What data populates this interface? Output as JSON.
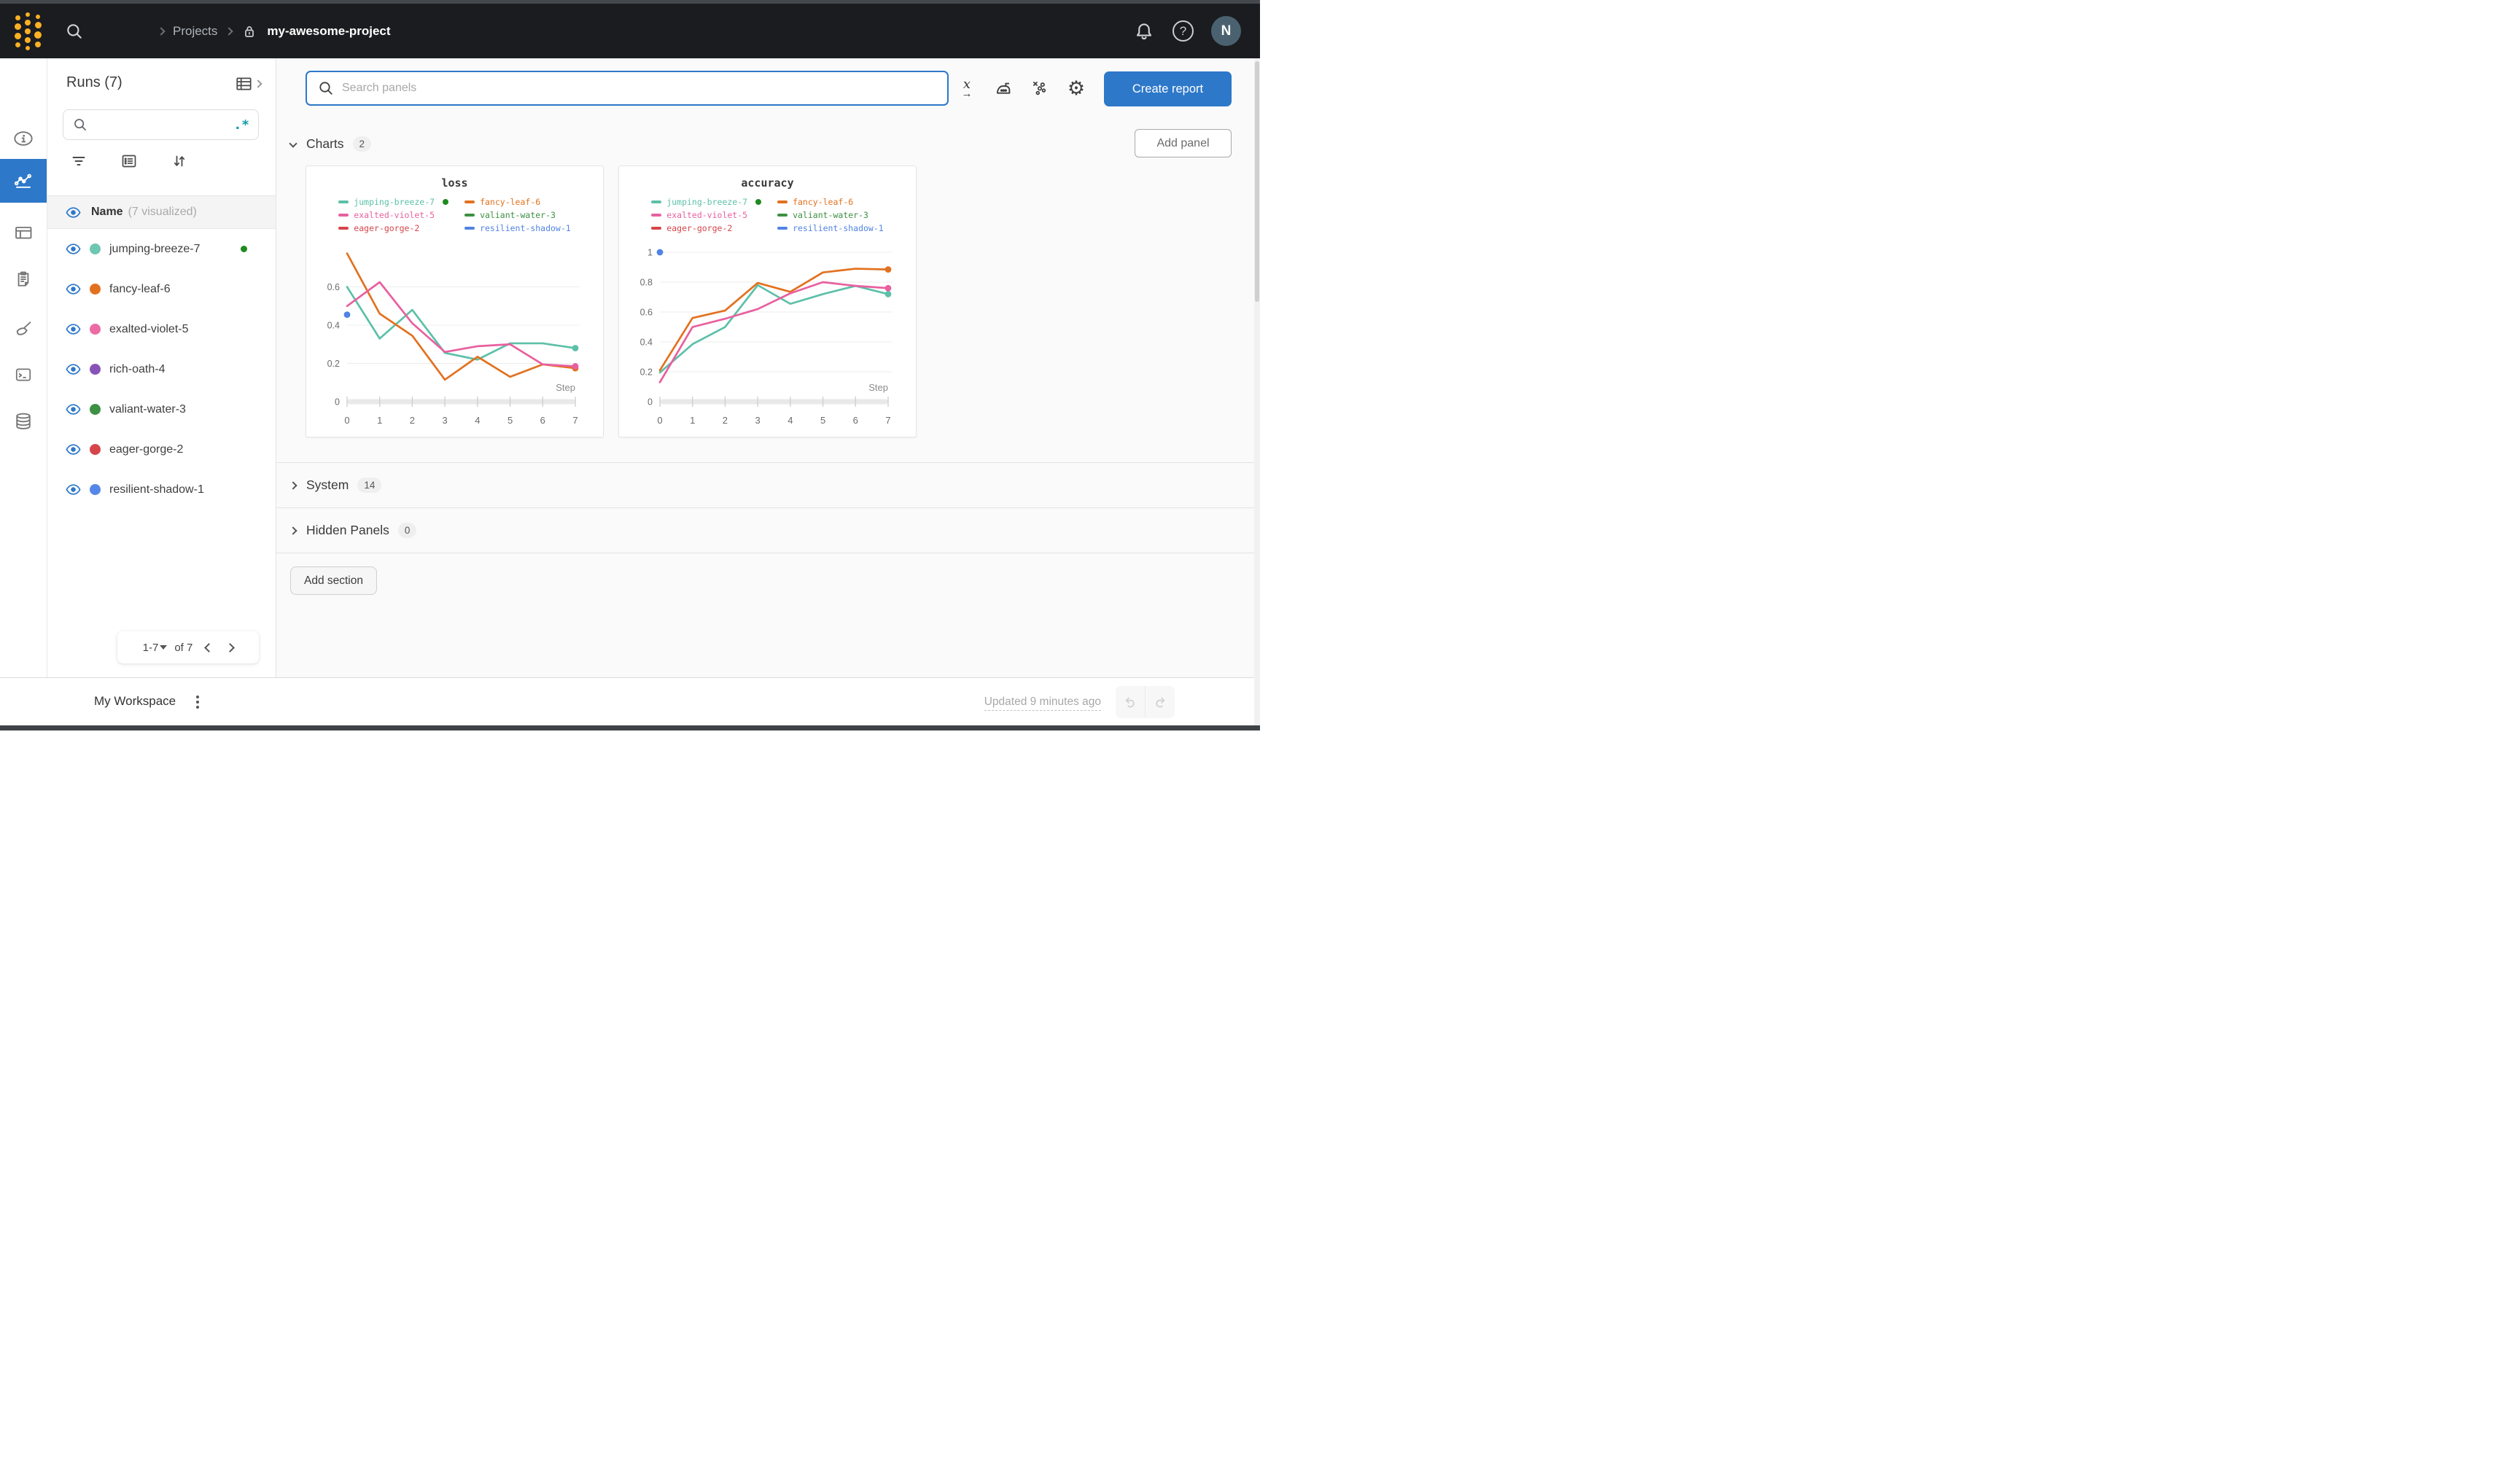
{
  "theme": {
    "accent_blue": "#2d78c9",
    "header_bg": "#1a1c20",
    "logo_yellow": "#fcb024",
    "status_green": "#1f8a1f",
    "avatar_bg": "#4a6270",
    "main_bg": "#fafafa"
  },
  "header": {
    "breadcrumb": {
      "projects": "Projects",
      "project": "my-awesome-project"
    },
    "help_glyph": "?",
    "avatar_initial": "N"
  },
  "sidebar": {
    "title": "Runs (7)",
    "search_value": "",
    "regex_glyph": ".*",
    "name_header": {
      "label": "Name",
      "sub": "(7 visualized)"
    },
    "runs": [
      {
        "name": "jumping-breeze-7",
        "color": "#6ec7b1",
        "status": "running"
      },
      {
        "name": "fancy-leaf-6",
        "color": "#e2711f",
        "status": null
      },
      {
        "name": "exalted-violet-5",
        "color": "#ec6ba5",
        "status": null
      },
      {
        "name": "rich-oath-4",
        "color": "#8853b8",
        "status": null
      },
      {
        "name": "valiant-water-3",
        "color": "#3d9144",
        "status": null
      },
      {
        "name": "eager-gorge-2",
        "color": "#d6454b",
        "status": null
      },
      {
        "name": "resilient-shadow-1",
        "color": "#5487e8",
        "status": null
      }
    ],
    "pagination": {
      "range": "1-7",
      "of": "of 7"
    }
  },
  "main": {
    "search": {
      "placeholder": "Search panels"
    },
    "gear_glyph": "⚙",
    "xaxis_glyph_x": "x",
    "xaxis_glyph_arrow": "→",
    "create_report_label": "Create report",
    "add_panel_label": "Add panel",
    "sections": {
      "charts": {
        "label": "Charts",
        "count": "2"
      },
      "system": {
        "label": "System",
        "count": "14"
      },
      "hidden": {
        "label": "Hidden Panels",
        "count": "0"
      }
    },
    "add_section_label": "Add section"
  },
  "footer": {
    "workspace_label": "My Workspace",
    "updated_text": "Updated 9 minutes ago"
  },
  "chart_data": [
    {
      "type": "line",
      "title": "loss",
      "xlabel": "Step",
      "xlim": [
        0,
        7
      ],
      "ylim": [
        0,
        0.785
      ],
      "xticks": [
        0,
        1,
        2,
        3,
        4,
        5,
        6,
        7
      ],
      "yticks": [
        0.2,
        0.4,
        0.6
      ],
      "grid": "horizontal",
      "legend_position": "top",
      "series": [
        {
          "name": "jumping-breeze-7",
          "color": "#5cc0a8",
          "status_dot": true,
          "points": [
            [
              0,
              0.6
            ],
            [
              1,
              0.33
            ],
            [
              2,
              0.48
            ],
            [
              3,
              0.255
            ],
            [
              4,
              0.22
            ],
            [
              5,
              0.305
            ],
            [
              6,
              0.305
            ],
            [
              7,
              0.28
            ]
          ]
        },
        {
          "name": "fancy-leaf-6",
          "color": "#e2711f",
          "points": [
            [
              0,
              0.775
            ],
            [
              1,
              0.46
            ],
            [
              2,
              0.345
            ],
            [
              3,
              0.115
            ],
            [
              4,
              0.235
            ],
            [
              5,
              0.13
            ],
            [
              6,
              0.195
            ],
            [
              7,
              0.175
            ]
          ]
        },
        {
          "name": "exalted-violet-5",
          "color": "#e8609f",
          "points": [
            [
              0,
              0.5
            ],
            [
              1,
              0.625
            ],
            [
              2,
              0.41
            ],
            [
              3,
              0.26
            ],
            [
              4,
              0.29
            ],
            [
              5,
              0.3
            ],
            [
              6,
              0.195
            ],
            [
              7,
              0.185
            ]
          ]
        },
        {
          "name": "valiant-water-3",
          "color": "#3d9144",
          "points": []
        },
        {
          "name": "eager-gorge-2",
          "color": "#d6454b",
          "points": []
        },
        {
          "name": "resilient-shadow-1",
          "color": "#5183e4",
          "points": [
            [
              0,
              0.455
            ]
          ]
        }
      ]
    },
    {
      "type": "line",
      "title": "accuracy",
      "xlabel": "Step",
      "xlim": [
        0,
        7
      ],
      "ylim": [
        0,
        1.005
      ],
      "xticks": [
        0,
        1,
        2,
        3,
        4,
        5,
        6,
        7
      ],
      "yticks": [
        0.2,
        0.4,
        0.6,
        0.8,
        1
      ],
      "grid": "horizontal",
      "legend_position": "top",
      "series": [
        {
          "name": "jumping-breeze-7",
          "color": "#5cc0a8",
          "status_dot": true,
          "points": [
            [
              0,
              0.195
            ],
            [
              1,
              0.385
            ],
            [
              2,
              0.5
            ],
            [
              3,
              0.78
            ],
            [
              4,
              0.655
            ],
            [
              5,
              0.72
            ],
            [
              6,
              0.775
            ],
            [
              7,
              0.72
            ]
          ]
        },
        {
          "name": "fancy-leaf-6",
          "color": "#e2711f",
          "points": [
            [
              0,
              0.21
            ],
            [
              1,
              0.56
            ],
            [
              2,
              0.61
            ],
            [
              3,
              0.795
            ],
            [
              4,
              0.735
            ],
            [
              5,
              0.865
            ],
            [
              6,
              0.89
            ],
            [
              7,
              0.885
            ]
          ]
        },
        {
          "name": "exalted-violet-5",
          "color": "#e8609f",
          "points": [
            [
              0,
              0.13
            ],
            [
              1,
              0.5
            ],
            [
              2,
              0.555
            ],
            [
              3,
              0.62
            ],
            [
              4,
              0.725
            ],
            [
              5,
              0.8
            ],
            [
              6,
              0.775
            ],
            [
              7,
              0.76
            ]
          ]
        },
        {
          "name": "valiant-water-3",
          "color": "#3d9144",
          "points": []
        },
        {
          "name": "eager-gorge-2",
          "color": "#d6454b",
          "points": []
        },
        {
          "name": "resilient-shadow-1",
          "color": "#5183e4",
          "points": [
            [
              0,
              1.0
            ]
          ]
        }
      ]
    }
  ]
}
